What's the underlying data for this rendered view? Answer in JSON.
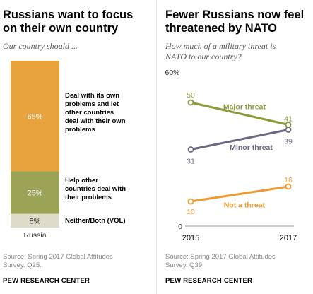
{
  "left": {
    "title_lines": [
      "Russians want to focus",
      "on their own country"
    ],
    "subtitle": "Our country should ...",
    "source_lines": [
      "Source: Spring 2017 Global Attitudes",
      "Survey. Q25."
    ],
    "credit": "PEW RESEARCH CENTER"
  },
  "right": {
    "title_lines": [
      "Fewer Russians now feel",
      "threatened by NATO"
    ],
    "subtitle_lines": [
      "How much of a military threat is",
      "NATO to our country?"
    ],
    "source_lines": [
      "Source: Spring 2017 Global Attitudes",
      "Survey. Q39."
    ],
    "credit": "PEW RESEARCH CENTER"
  },
  "chart_data": [
    {
      "type": "bar",
      "stacked": true,
      "categories": [
        "Russia"
      ],
      "series": [
        {
          "name": "Deal with its own problems and let other countries deal with their own problems",
          "label_lines": [
            "Deal with its own",
            "problems and let",
            "other countries",
            "deal with their own",
            "problems"
          ],
          "values": [
            65
          ],
          "value_label": "65%",
          "color": "#E8A33C"
        },
        {
          "name": "Help other countries deal with their problems",
          "label_lines": [
            "Help other",
            "countries deal with",
            "their problems"
          ],
          "values": [
            25
          ],
          "value_label": "25%",
          "color": "#9AA356"
        },
        {
          "name": "Neither/Both (VOL)",
          "label_lines": [
            "Neither/Both (VOL)"
          ],
          "values": [
            8
          ],
          "value_label": "8%",
          "color": "#DDDBC9"
        }
      ],
      "ylim": [
        0,
        100
      ]
    },
    {
      "type": "line",
      "x": [
        2015,
        2017
      ],
      "x_tick_labels": [
        "2015",
        "2017"
      ],
      "y_tick_labels": [
        "0",
        "60%"
      ],
      "ylim": [
        0,
        60
      ],
      "series": [
        {
          "name": "Major threat",
          "values": [
            50,
            41
          ],
          "value_labels": [
            "50",
            "41"
          ],
          "color": "#8E9A3A"
        },
        {
          "name": "Minor threat",
          "values": [
            31,
            39
          ],
          "value_labels": [
            "31",
            "39"
          ],
          "color": "#6E6780"
        },
        {
          "name": "Not a threat",
          "values": [
            10,
            16
          ],
          "value_labels": [
            "10",
            "16"
          ],
          "color": "#EE9A2E"
        }
      ]
    }
  ]
}
